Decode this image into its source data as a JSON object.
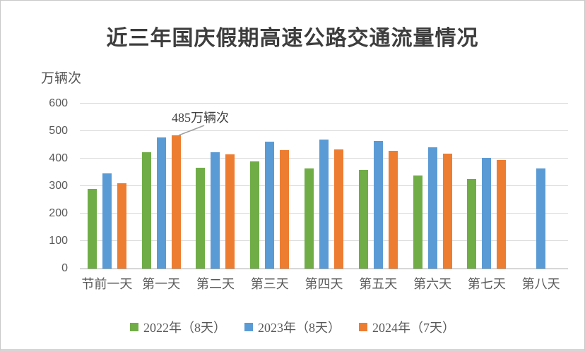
{
  "page": {
    "title": "近三年国庆假期高速公路交通流量情况",
    "y_axis_unit_label": "万辆次"
  },
  "annotation": {
    "text": "485万辆次"
  },
  "chart_data": {
    "type": "bar",
    "title": "近三年国庆假期高速公路交通流量情况",
    "ylabel": "万辆次",
    "xlabel": "",
    "categories": [
      "节前一天",
      "第一天",
      "第二天",
      "第三天",
      "第四天",
      "第五天",
      "第六天",
      "第七天",
      "第八天"
    ],
    "series": [
      {
        "name": "2022年（8天）",
        "color": "#70AD47",
        "values": [
          290,
          422,
          367,
          391,
          365,
          359,
          338,
          326,
          null
        ]
      },
      {
        "name": "2023年（8天）",
        "color": "#5B9BD5",
        "values": [
          347,
          476,
          424,
          462,
          470,
          463,
          440,
          402,
          364
        ]
      },
      {
        "name": "2024年（7天）",
        "color": "#ED7D31",
        "values": [
          310,
          485,
          415,
          432,
          434,
          429,
          418,
          394,
          null
        ]
      }
    ],
    "ylim": [
      0,
      600
    ],
    "ytick_step": 100,
    "grid": "horizontal-only",
    "legend_position": "bottom",
    "annotation": {
      "text": "485万辆次",
      "target_series": "2024年（7天）",
      "target_category": "第一天",
      "value": 485
    }
  },
  "colors": {
    "series_2022": "#70AD47",
    "series_2023": "#5B9BD5",
    "series_2024": "#ED7D31",
    "gridline": "#d9d9d9",
    "axis_line": "#a6a6a6",
    "tick_text": "#595959",
    "title_text": "#3d3d3d"
  }
}
